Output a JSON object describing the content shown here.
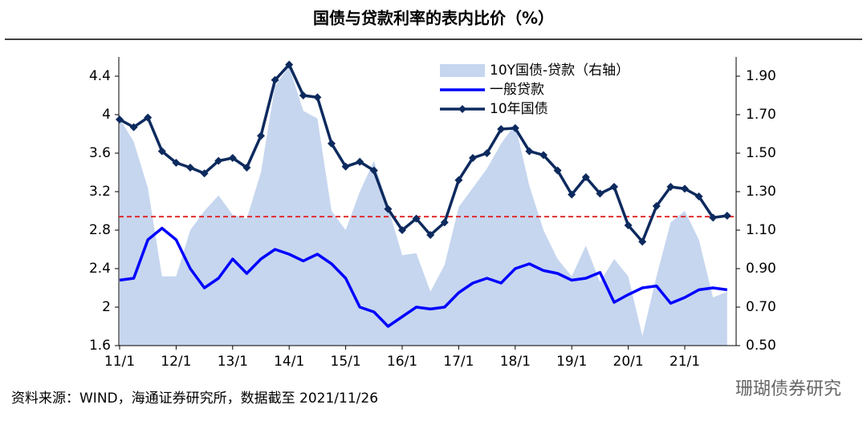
{
  "chart_data": {
    "type": "line",
    "title": "国债与贷款利率的表内比价（%）",
    "categories": [
      "11/1",
      null,
      null,
      null,
      "12/1",
      null,
      null,
      null,
      "13/1",
      null,
      null,
      null,
      "14/1",
      null,
      null,
      null,
      "15/1",
      null,
      null,
      null,
      "16/1",
      null,
      null,
      null,
      "17/1",
      null,
      null,
      null,
      "18/1",
      null,
      null,
      null,
      "19/1",
      null,
      null,
      null,
      "20/1",
      null,
      null,
      null,
      "21/1",
      null,
      null,
      null
    ],
    "series": [
      {
        "name": "10Y国债-贷款（右轴）",
        "kind": "area",
        "axis": "y2",
        "color": "#c6d6ef",
        "values": [
          1.68,
          1.56,
          1.32,
          0.86,
          0.86,
          1.1,
          1.2,
          1.28,
          1.18,
          1.16,
          1.4,
          1.85,
          1.95,
          1.72,
          1.68,
          1.2,
          1.1,
          1.3,
          1.46,
          1.22,
          0.97,
          0.98,
          0.78,
          0.92,
          1.22,
          1.32,
          1.42,
          1.55,
          1.65,
          1.33,
          1.1,
          0.95,
          0.86,
          1.02,
          0.83,
          0.95,
          0.86,
          0.55,
          0.86,
          1.14,
          1.2,
          1.05,
          0.75,
          0.78
        ]
      },
      {
        "name": "一般贷款",
        "kind": "line",
        "color": "#0000ff",
        "values": [
          2.28,
          2.3,
          2.7,
          2.82,
          2.7,
          2.4,
          2.2,
          2.3,
          2.5,
          2.35,
          2.5,
          2.6,
          2.55,
          2.48,
          2.55,
          2.45,
          2.3,
          2.0,
          1.95,
          1.8,
          1.9,
          2.0,
          1.98,
          2.0,
          2.15,
          2.25,
          2.3,
          2.25,
          2.4,
          2.45,
          2.38,
          2.35,
          2.28,
          2.3,
          2.36,
          2.05,
          2.13,
          2.2,
          2.22,
          2.04,
          2.1,
          2.18,
          2.2,
          2.18
        ]
      },
      {
        "name": "10年国债",
        "kind": "line-marker",
        "color": "#0d2a5e",
        "values": [
          3.95,
          3.87,
          3.97,
          3.62,
          3.5,
          3.45,
          3.39,
          3.52,
          3.55,
          3.45,
          3.78,
          4.36,
          4.52,
          4.2,
          4.18,
          3.7,
          3.46,
          3.51,
          3.42,
          3.02,
          2.8,
          2.92,
          2.75,
          2.88,
          3.32,
          3.55,
          3.6,
          3.85,
          3.86,
          3.62,
          3.58,
          3.42,
          3.17,
          3.35,
          3.18,
          3.25,
          2.85,
          2.68,
          3.05,
          3.25,
          3.23,
          3.15,
          2.93,
          2.95
        ]
      }
    ],
    "ylim": [
      1.6,
      4.6
    ],
    "yticks": [
      1.6,
      2,
      2.4,
      2.8,
      3.2,
      3.6,
      4,
      4.4
    ],
    "y2lim": [
      0.5,
      2.0
    ],
    "y2ticks": [
      {
        "value": 0.5,
        "label": "0.50"
      },
      {
        "value": 0.7,
        "label": "0.70"
      },
      {
        "value": 0.9,
        "label": "0.90"
      },
      {
        "value": 1.1,
        "label": "1.10"
      },
      {
        "value": 1.3,
        "label": "1.30"
      },
      {
        "value": 1.5,
        "label": "1.50"
      },
      {
        "value": 1.7,
        "label": "1.70"
      },
      {
        "value": 1.9,
        "label": "1.90"
      }
    ],
    "hline": {
      "value": 1.17,
      "axis": "y2",
      "color": "#e02020"
    },
    "source": "资料来源：WIND，海通证券研究所，数据截至 2021/11/26",
    "watermark": "珊瑚债券研究"
  }
}
